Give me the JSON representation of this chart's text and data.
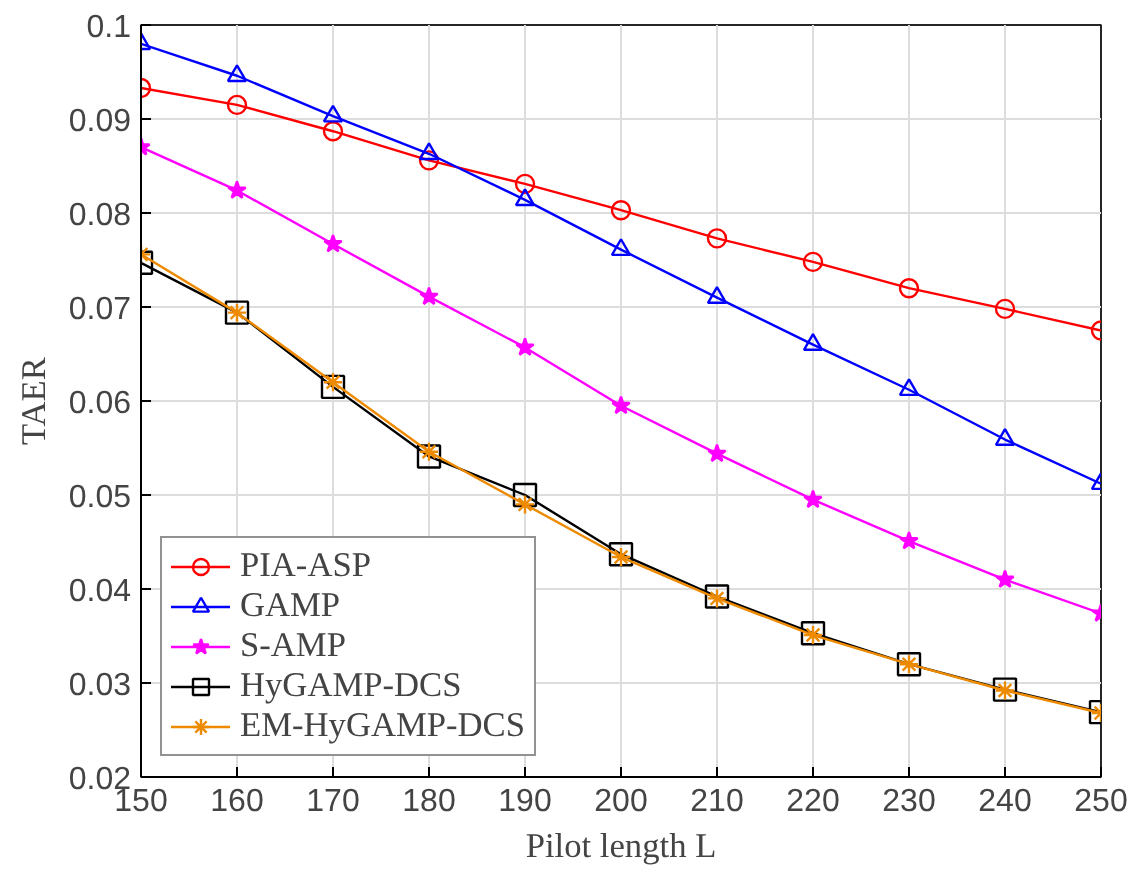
{
  "chart_data": {
    "type": "line",
    "xlabel": "Pilot length L",
    "ylabel": "TAER",
    "x": [
      150,
      160,
      170,
      180,
      190,
      200,
      210,
      220,
      230,
      240,
      250
    ],
    "xlim": [
      150,
      250
    ],
    "xticks": [
      150,
      160,
      170,
      180,
      190,
      200,
      210,
      220,
      230,
      240,
      250
    ],
    "ylim": [
      0.02,
      0.1
    ],
    "yticks": [
      0.02,
      0.03,
      0.04,
      0.05,
      0.06,
      0.07,
      0.08,
      0.09,
      0.1
    ],
    "grid": true,
    "legend": "bottom left",
    "line_style": "solid",
    "series": [
      {
        "name": "PIA-ASP",
        "color": "#ff0000",
        "marker": "circle",
        "values": [
          0.0933,
          0.0915,
          0.0887,
          0.0856,
          0.0831,
          0.0803,
          0.0773,
          0.0748,
          0.072,
          0.0698,
          0.0675
        ]
      },
      {
        "name": "GAMP",
        "color": "#0000ff",
        "marker": "triangle",
        "values": [
          0.098,
          0.0946,
          0.0903,
          0.0863,
          0.0814,
          0.0761,
          0.071,
          0.066,
          0.0612,
          0.0559,
          0.0512
        ]
      },
      {
        "name": "S-AMP",
        "color": "#ff00ff",
        "marker": "star",
        "values": [
          0.087,
          0.0824,
          0.0767,
          0.0711,
          0.0657,
          0.0595,
          0.0544,
          0.0495,
          0.0451,
          0.041,
          0.0374
        ]
      },
      {
        "name": "HyGAMP-DCS",
        "color": "#000000",
        "marker": "square",
        "values": [
          0.0747,
          0.0694,
          0.0615,
          0.0541,
          0.05,
          0.0437,
          0.0392,
          0.0353,
          0.032,
          0.0293,
          0.0269
        ]
      },
      {
        "name": "EM-HyGAMP-DCS",
        "color": "#ed8a00",
        "marker": "cross",
        "values": [
          0.0756,
          0.0694,
          0.062,
          0.0546,
          0.049,
          0.0434,
          0.039,
          0.0351,
          0.032,
          0.0292,
          0.0268
        ]
      }
    ]
  }
}
